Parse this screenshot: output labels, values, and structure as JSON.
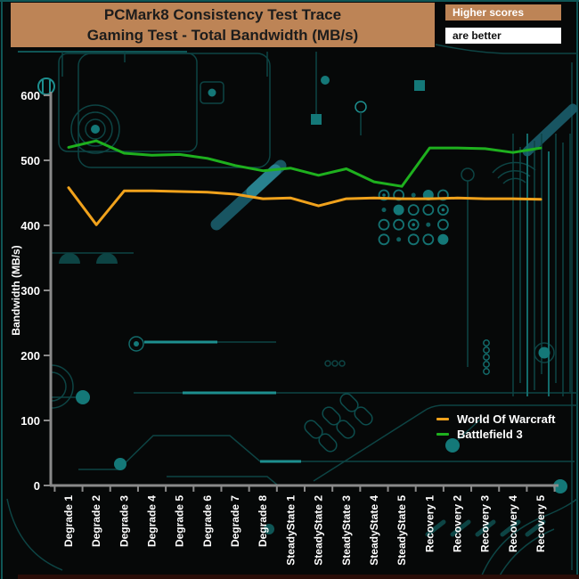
{
  "header": {
    "title_line1": "PCMark8 Consistency Test Trace",
    "title_line2": "Gaming Test - Total Bandwidth (MB/s)",
    "banner_color": "#bd8456",
    "note_top": "Higher scores",
    "note_bottom": "are better"
  },
  "chart_data": {
    "type": "line",
    "title": "PCMark8 Consistency Test Trace — Gaming Test - Total Bandwidth (MB/s)",
    "xlabel": "",
    "ylabel": "Bandwidth (MB/s)",
    "ylim": [
      0,
      600
    ],
    "ytick_interval": 100,
    "grid": false,
    "legend_position": "lower right",
    "categories": [
      "Degrade 1",
      "Degrade 2",
      "Degrade 3",
      "Degrade 4",
      "Degrade 5",
      "Degrade 6",
      "Degrade 7",
      "Degrade 8",
      "SteadyState 1",
      "SteadyState 2",
      "SteadyState 3",
      "SteadyState 4",
      "SteadyState 5",
      "Recovery 1",
      "Recovery 2",
      "Recovery 3",
      "Recovery 4",
      "Recovery 5"
    ],
    "series": [
      {
        "name": "World Of Warcraft",
        "color": "#f0a21c",
        "values": [
          458,
          401,
          453,
          453,
          452,
          451,
          448,
          441,
          442,
          430,
          441,
          442,
          441,
          441,
          442,
          441,
          441,
          440
        ]
      },
      {
        "name": "Battlefield 3",
        "color": "#1eb01e",
        "values": [
          520,
          530,
          511,
          508,
          509,
          503,
          492,
          484,
          488,
          477,
          487,
          467,
          460,
          519,
          519,
          518,
          512,
          519
        ]
      }
    ]
  },
  "colors": {
    "axis": "#8a8a8a",
    "tick_text": "#ffffff",
    "background": "#060808",
    "circuit_dim": "#0d4444",
    "circuit_mid": "#136a6a",
    "circuit_bright": "#1d8f8f",
    "bottom_strip": "#2a0d08"
  }
}
